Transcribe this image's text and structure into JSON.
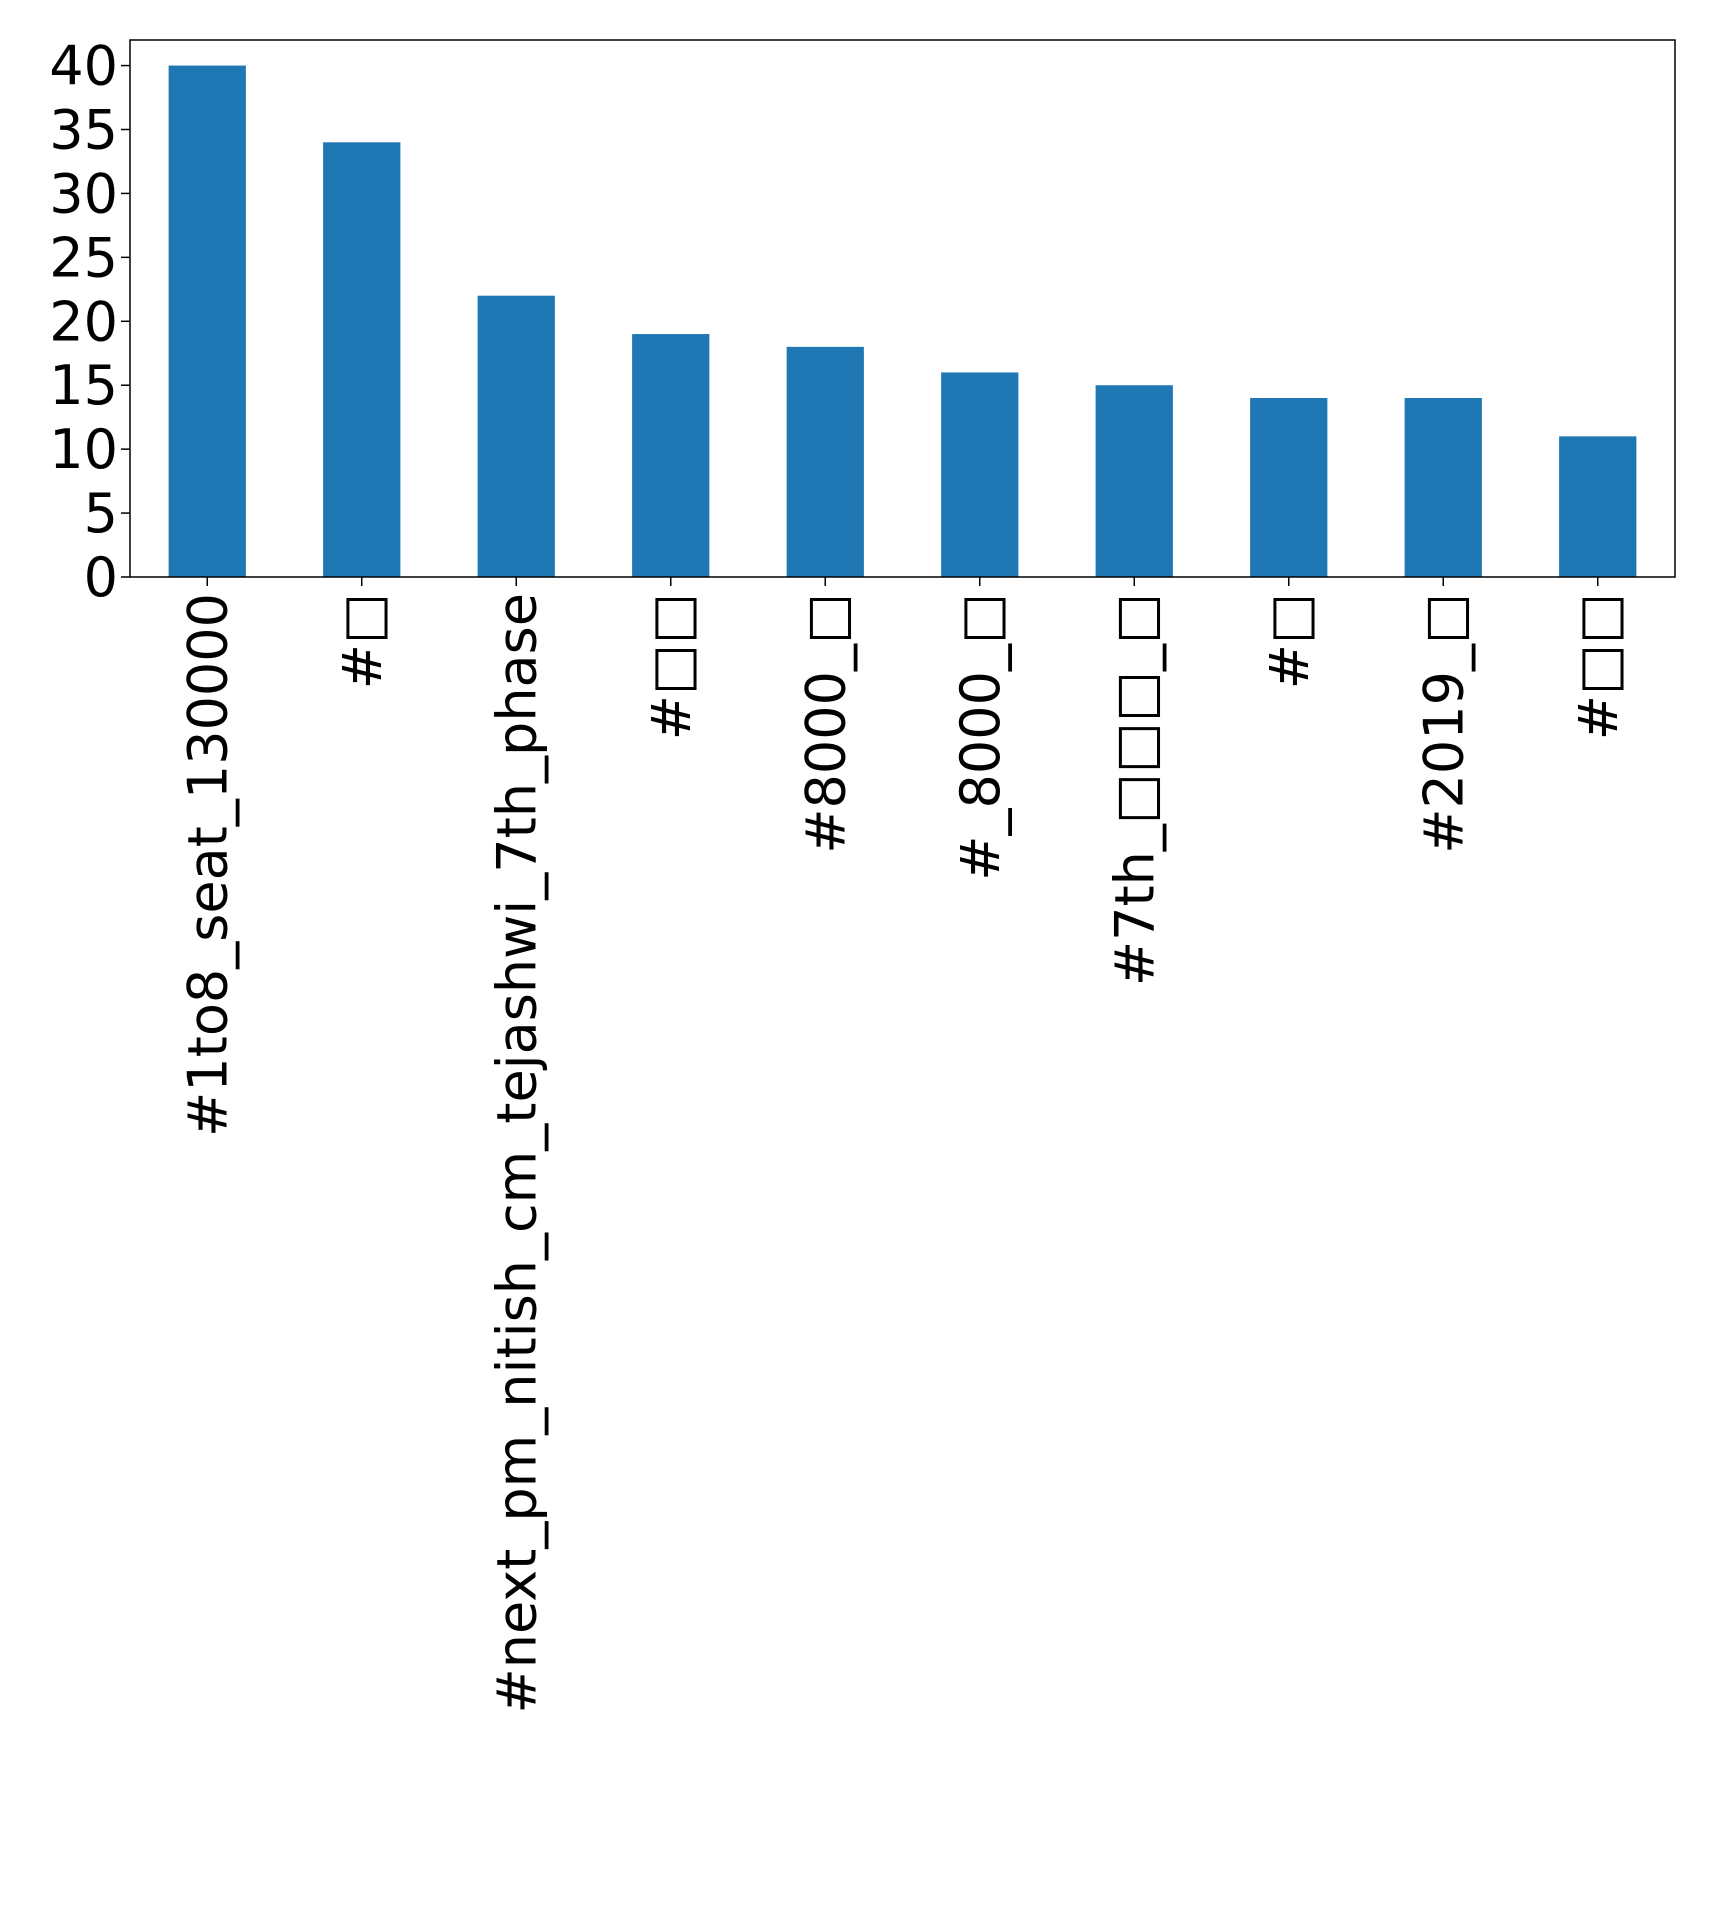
{
  "chart_data": {
    "type": "bar",
    "title": "",
    "xlabel": "",
    "ylabel": "",
    "categories": [
      "#1to8_seat_130000",
      "#□",
      "#next_pm_nitish_cm_tejashwi_7th_phase",
      "#□□",
      "#8000_□",
      "#_8000_□",
      "#7th_□□□_□",
      "#□",
      "#2019_□",
      "#□□"
    ],
    "values": [
      40,
      34,
      22,
      19,
      18,
      16,
      15,
      14,
      14,
      11
    ],
    "ylim": [
      0,
      42
    ],
    "yticks": [
      0,
      5,
      10,
      15,
      20,
      25,
      30,
      35,
      40
    ],
    "bar_color": "#1f77b4",
    "grid": false,
    "legend": "none"
  }
}
